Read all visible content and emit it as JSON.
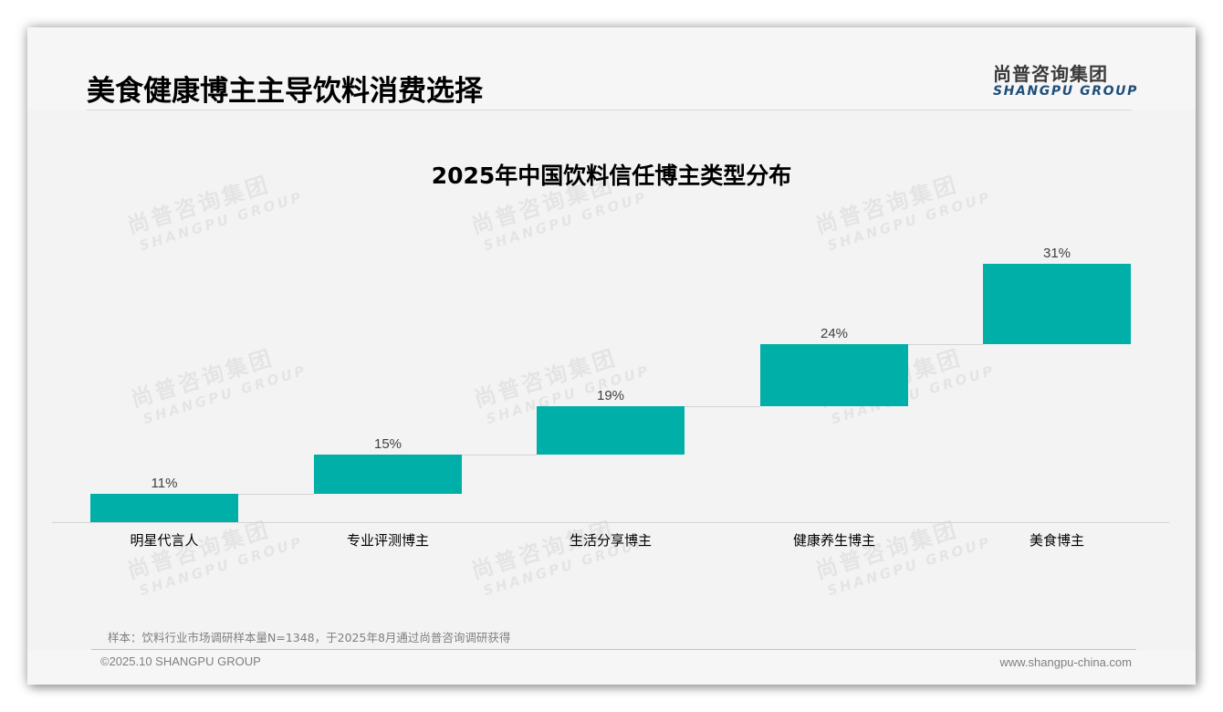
{
  "header": {
    "title": "美食健康博主主导饮料消费选择",
    "logo_cn": "尚普咨询集团",
    "logo_en": "SHANGPU GROUP"
  },
  "watermark": {
    "cn": "尚普咨询集团",
    "en": "SHANGPU GROUP"
  },
  "chart": {
    "title": "2025年中国饮料信任博主类型分布",
    "bar_color": "#00b0a8",
    "bars": [
      {
        "category": "明星代言人",
        "label": "11%"
      },
      {
        "category": "专业评测博主",
        "label": "15%"
      },
      {
        "category": "生活分享博主",
        "label": "19%"
      },
      {
        "category": "健康养生博主",
        "label": "24%"
      },
      {
        "category": "美食博主",
        "label": "31%"
      }
    ]
  },
  "chart_data": {
    "type": "bar",
    "subtype": "waterfall",
    "title": "2025年中国饮料信任博主类型分布",
    "categories": [
      "明星代言人",
      "专业评测博主",
      "生活分享博主",
      "健康养生博主",
      "美食博主"
    ],
    "values": [
      11,
      15,
      19,
      24,
      31
    ],
    "value_suffix": "%",
    "xlabel": "",
    "ylabel": "",
    "ylim": [
      0,
      100
    ],
    "grid": false,
    "legend": null,
    "data_labels": [
      "11%",
      "15%",
      "19%",
      "24%",
      "31%"
    ]
  },
  "footer": {
    "note": "样本：饮料行业市场调研样本量N=1348，于2025年8月通过尚普咨询调研获得",
    "copyright": "©2025.10 SHANGPU GROUP",
    "website": "www.shangpu-china.com"
  }
}
